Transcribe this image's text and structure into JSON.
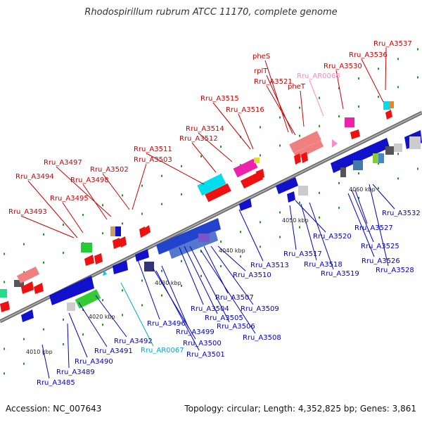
{
  "title": "Rhodospirillum rubrum ATCC 11170, complete genome",
  "footer": {
    "accession": "Accession: NC_007643",
    "topology": "Topology: circular; Length: 4,352,825 bp; Genes: 3,861"
  },
  "colors": {
    "forward_label": "#cc0000",
    "reverse_label": "#0000cc",
    "rna_label": "#ff88bb",
    "trna_label": "#00aacc",
    "backbone": "#888888"
  },
  "ticks": [
    "4010 kbp",
    "4020 kbp",
    "4030 kbp",
    "4040 kbp",
    "4050 kbp",
    "4060 kbp"
  ],
  "labels": [
    {
      "id": "Rru_A3537",
      "strand": "forward"
    },
    {
      "id": "Rru_A3536",
      "strand": "forward"
    },
    {
      "id": "pheS",
      "strand": "forward"
    },
    {
      "id": "Rru_A3530",
      "strand": "forward"
    },
    {
      "id": "rplT",
      "strand": "forward"
    },
    {
      "id": "Rru_AR0068",
      "strand": "rna"
    },
    {
      "id": "Rru_A3521",
      "strand": "forward"
    },
    {
      "id": "pheT",
      "strand": "forward"
    },
    {
      "id": "Rru_A3515",
      "strand": "forward"
    },
    {
      "id": "Rru_A3516",
      "strand": "forward"
    },
    {
      "id": "Rru_A3514",
      "strand": "forward"
    },
    {
      "id": "Rru_A3512",
      "strand": "forward"
    },
    {
      "id": "Rru_A3511",
      "strand": "forward"
    },
    {
      "id": "Rru_A3503",
      "strand": "forward"
    },
    {
      "id": "Rru_A3497",
      "strand": "forward"
    },
    {
      "id": "Rru_A3502",
      "strand": "forward"
    },
    {
      "id": "Rru_A3494",
      "strand": "forward"
    },
    {
      "id": "Rru_A3498",
      "strand": "forward"
    },
    {
      "id": "Rru_A3495",
      "strand": "forward"
    },
    {
      "id": "Rru_A3493",
      "strand": "forward"
    },
    {
      "id": "Rru_A3532",
      "strand": "reverse"
    },
    {
      "id": "Rru_A3520",
      "strand": "reverse"
    },
    {
      "id": "Rru_A3527",
      "strand": "reverse"
    },
    {
      "id": "Rru_A3525",
      "strand": "reverse"
    },
    {
      "id": "Rru_A3526",
      "strand": "reverse"
    },
    {
      "id": "Rru_A3528",
      "strand": "reverse"
    },
    {
      "id": "Rru_A3517",
      "strand": "reverse"
    },
    {
      "id": "Rru_A3518",
      "strand": "reverse"
    },
    {
      "id": "Rru_A3519",
      "strand": "reverse"
    },
    {
      "id": "Rru_A3513",
      "strand": "reverse"
    },
    {
      "id": "Rru_A3510",
      "strand": "reverse"
    },
    {
      "id": "Rru_A3507",
      "strand": "reverse"
    },
    {
      "id": "Rru_A3509",
      "strand": "reverse"
    },
    {
      "id": "Rru_A3504",
      "strand": "reverse"
    },
    {
      "id": "Rru_A3505",
      "strand": "reverse"
    },
    {
      "id": "Rru_A3506",
      "strand": "reverse"
    },
    {
      "id": "Rru_A3496",
      "strand": "reverse"
    },
    {
      "id": "Rru_A3499",
      "strand": "reverse"
    },
    {
      "id": "Rru_A3508",
      "strand": "reverse"
    },
    {
      "id": "Rru_A3492",
      "strand": "reverse"
    },
    {
      "id": "Rru_A3500",
      "strand": "reverse"
    },
    {
      "id": "Rru_AR0067",
      "strand": "trna"
    },
    {
      "id": "Rru_A3501",
      "strand": "reverse"
    },
    {
      "id": "Rru_A3491",
      "strand": "reverse"
    },
    {
      "id": "Rru_A3490",
      "strand": "reverse"
    },
    {
      "id": "Rru_A3489",
      "strand": "reverse"
    },
    {
      "id": "Rru_A3485",
      "strand": "reverse"
    }
  ]
}
